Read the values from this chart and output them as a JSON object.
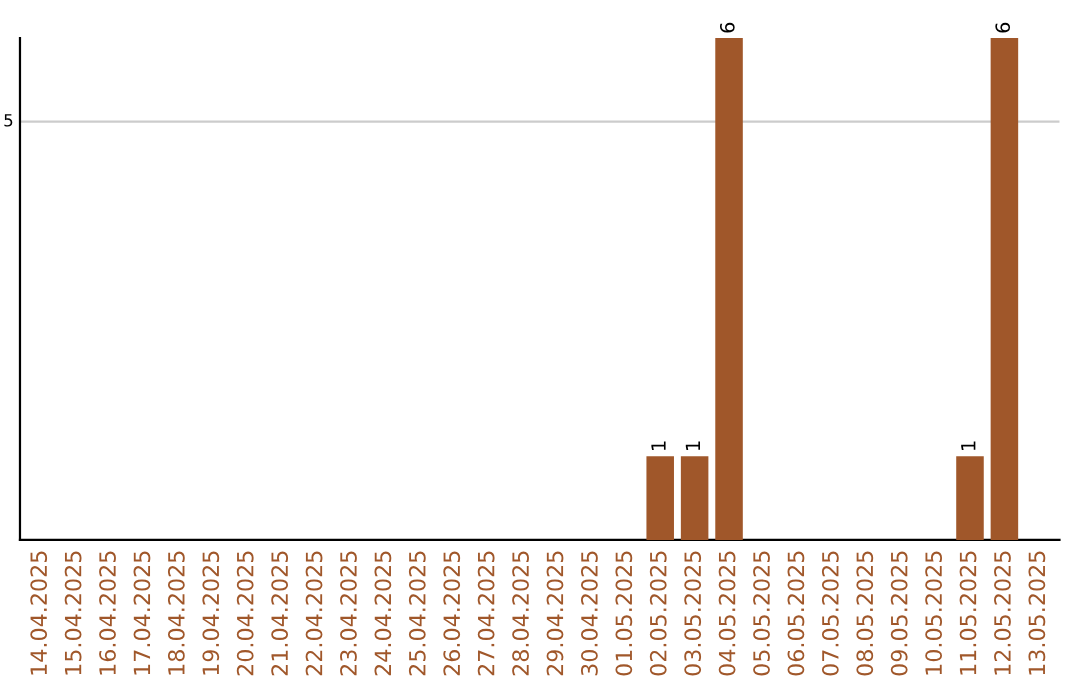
{
  "chart_data": {
    "type": "bar",
    "categories": [
      "14.04.2025",
      "15.04.2025",
      "16.04.2025",
      "17.04.2025",
      "18.04.2025",
      "19.04.2025",
      "20.04.2025",
      "21.04.2025",
      "22.04.2025",
      "23.04.2025",
      "24.04.2025",
      "25.04.2025",
      "26.04.2025",
      "27.04.2025",
      "28.04.2025",
      "29.04.2025",
      "30.04.2025",
      "01.05.2025",
      "02.05.2025",
      "03.05.2025",
      "04.05.2025",
      "05.05.2025",
      "06.05.2025",
      "07.05.2025",
      "08.05.2025",
      "09.05.2025",
      "10.05.2025",
      "11.05.2025",
      "12.05.2025",
      "13.05.2025"
    ],
    "values": [
      null,
      null,
      null,
      null,
      null,
      null,
      null,
      null,
      null,
      null,
      null,
      null,
      null,
      null,
      null,
      null,
      null,
      null,
      1,
      1,
      6,
      null,
      null,
      null,
      null,
      null,
      null,
      1,
      6,
      null
    ],
    "value_labels": [
      null,
      null,
      null,
      null,
      null,
      null,
      null,
      null,
      null,
      null,
      null,
      null,
      null,
      null,
      null,
      null,
      null,
      null,
      "1",
      "1",
      "6",
      null,
      null,
      null,
      null,
      null,
      null,
      "1",
      "6",
      null
    ],
    "color": "#a0572a",
    "ref_lines": [
      {
        "axis": "y",
        "value": 5,
        "label": "5",
        "color": "#cccccc"
      }
    ]
  }
}
